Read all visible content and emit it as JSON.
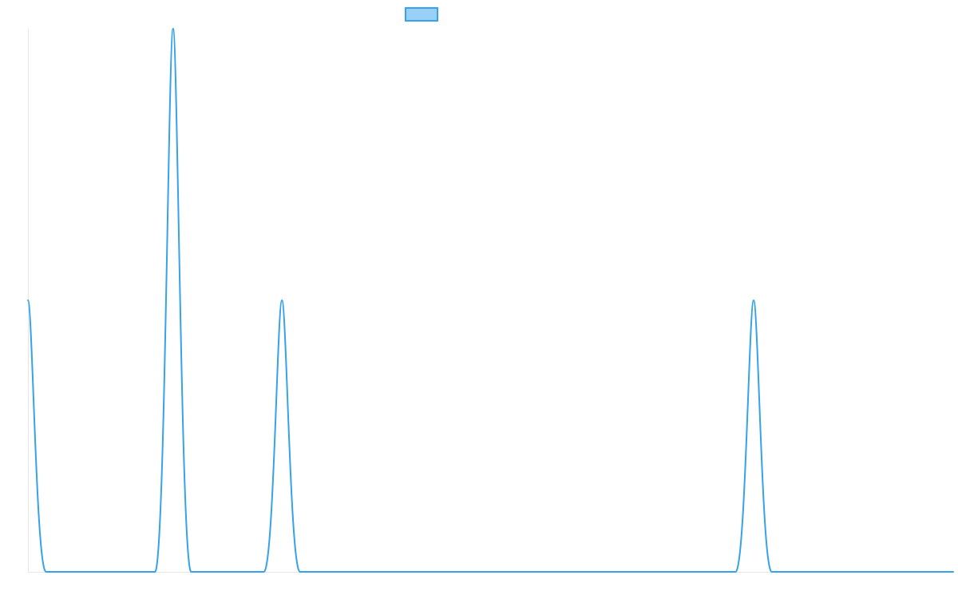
{
  "colors": {
    "series_stroke": "#36a2eb",
    "legend_fill": "#9ad0f5",
    "axis": "#e5e5e5",
    "background": "#ffffff"
  },
  "chart_data": {
    "type": "line",
    "title": "",
    "xlabel": "",
    "ylabel": "",
    "grid": false,
    "legend": "top-center",
    "xlim": [
      0,
      51
    ],
    "ylim": [
      0,
      3
    ],
    "series": [
      {
        "points": [
          [
            0,
            1.5
          ],
          [
            1,
            0
          ],
          [
            7,
            0
          ],
          [
            8,
            3
          ],
          [
            9,
            0
          ],
          [
            13,
            0
          ],
          [
            14,
            1.5
          ],
          [
            15,
            0
          ],
          [
            39,
            0
          ],
          [
            40,
            1.5
          ],
          [
            41,
            0
          ],
          [
            51,
            0
          ]
        ]
      }
    ]
  }
}
